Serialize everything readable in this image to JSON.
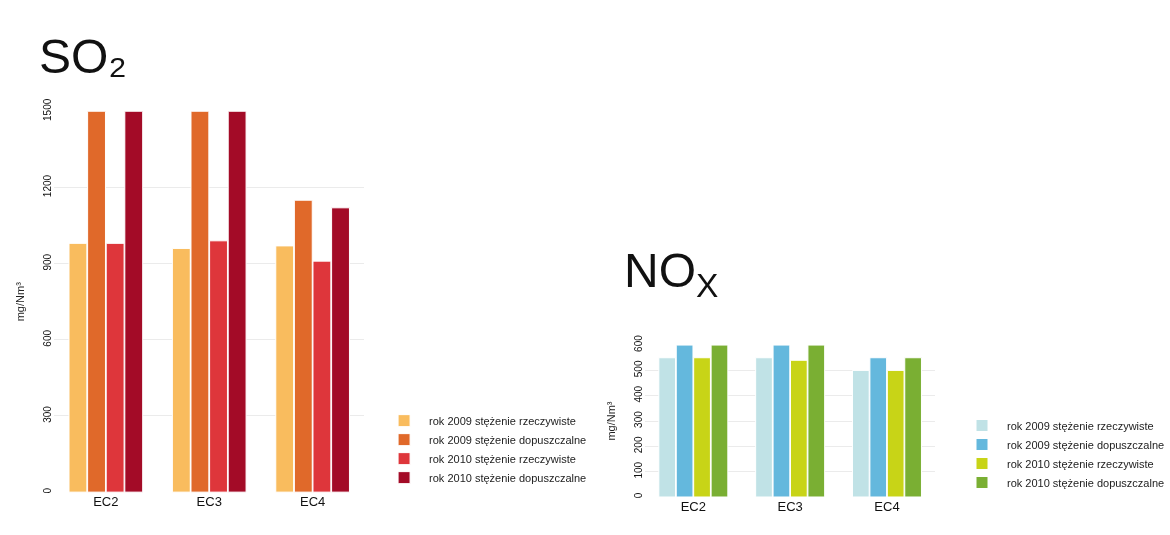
{
  "chart_data": [
    {
      "type": "bar",
      "title": "SO₂",
      "ylabel": "mg/Nm³",
      "categories": [
        "EC2",
        "EC3",
        "EC4"
      ],
      "ylim": [
        0,
        1500
      ],
      "yticks": [
        0,
        300,
        600,
        900,
        1200,
        1500
      ],
      "grid": "y",
      "legend": "bottom right",
      "series": [
        {
          "name": "rok 2009 stężenie rzeczywiste",
          "color": "#f9bc5e",
          "values": [
            980,
            960,
            970
          ]
        },
        {
          "name": "rok 2009 stężenie dopuszczalne",
          "color": "#e0692a",
          "values": [
            1500,
            1500,
            1150
          ]
        },
        {
          "name": "rok 2010 stężenie rzeczywiste",
          "color": "#de363b",
          "values": [
            980,
            990,
            910
          ]
        },
        {
          "name": "rok 2010 stężenie dopuszczalne",
          "color": "#a30b27",
          "values": [
            1500,
            1500,
            1120
          ]
        }
      ]
    },
    {
      "type": "bar",
      "title": "NO$_{X}$",
      "ylabel": "mg/Nm³",
      "categories": [
        "EC2",
        "EC3",
        "EC4"
      ],
      "ylim": [
        0,
        600
      ],
      "yticks": [
        0,
        100,
        200,
        300,
        400,
        500,
        600
      ],
      "grid": "y",
      "legend": "bottom right",
      "series": [
        {
          "name": "rok 2009 stężenie rzeczywiste",
          "color": "#c0e2e6",
          "values": [
            550,
            550,
            500
          ]
        },
        {
          "name": "rok 2009 stężenie dopuszczalne",
          "color": "#64b8dd",
          "values": [
            600,
            600,
            550
          ]
        },
        {
          "name": "rok 2010 stężenie rzeczywiste",
          "color": "#c8d417",
          "values": [
            550,
            540,
            500
          ]
        },
        {
          "name": "rok 2010 stężenie dopuszczalne",
          "color": "#7aaf33",
          "values": [
            600,
            600,
            550
          ]
        }
      ]
    }
  ]
}
